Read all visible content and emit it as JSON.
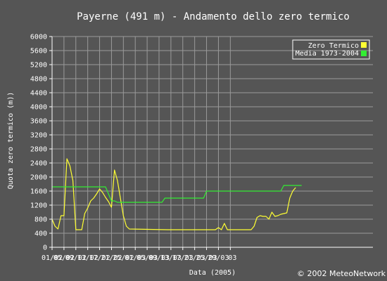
{
  "chart_data": {
    "type": "line",
    "title": "Payerne (491 m) - Andamento dello zero termico",
    "xlabel": "Data (2005)",
    "ylabel": "Quota zero termico (m))",
    "credit": "© 2002 MeteoNetwork",
    "ylim": [
      0,
      6000
    ],
    "y_ticks": [
      "0",
      "400",
      "800",
      "1200",
      "1600",
      "2000",
      "2400",
      "2800",
      "3200",
      "3600",
      "4000",
      "4400",
      "4800",
      "5200",
      "5600",
      "6000"
    ],
    "x_day_range": [
      1,
      109
    ],
    "x_ticks": [
      {
        "label": "01/02",
        "day": 1
      },
      {
        "label": "05/02",
        "day": 5
      },
      {
        "label": "09/02",
        "day": 9
      },
      {
        "label": "13/02",
        "day": 13
      },
      {
        "label": "17/02",
        "day": 17
      },
      {
        "label": "21/02",
        "day": 21
      },
      {
        "label": "25/02",
        "day": 25
      },
      {
        "label": "01/03",
        "day": 29
      },
      {
        "label": "05/03",
        "day": 33
      },
      {
        "label": "09/03",
        "day": 37
      },
      {
        "label": "13/03",
        "day": 41
      },
      {
        "label": "17/03",
        "day": 45
      },
      {
        "label": "21/03",
        "day": 49
      },
      {
        "label": "25/03",
        "day": 53
      },
      {
        "label": "29/03",
        "day": 57
      },
      {
        "label": "03",
        "day": 61
      }
    ],
    "grid": true,
    "legend_position": "top-right",
    "colors": {
      "background": "#555555",
      "axis": "#ffffff",
      "grid": "#9a9a9a",
      "zero_termico": "#ffff33",
      "media": "#33ee33"
    },
    "series": [
      {
        "name": "Zero Termico",
        "points": [
          [
            1,
            800
          ],
          [
            2,
            600
          ],
          [
            3,
            520
          ],
          [
            4,
            900
          ],
          [
            5,
            900
          ],
          [
            6,
            2520
          ],
          [
            7,
            2320
          ],
          [
            8,
            1900
          ],
          [
            9,
            500
          ],
          [
            10,
            500
          ],
          [
            11,
            500
          ],
          [
            12,
            960
          ],
          [
            13,
            1120
          ],
          [
            14,
            1320
          ],
          [
            15,
            1400
          ],
          [
            16,
            1520
          ],
          [
            17,
            1660
          ],
          [
            18,
            1560
          ],
          [
            19,
            1420
          ],
          [
            20,
            1300
          ],
          [
            21,
            1140
          ],
          [
            22,
            2200
          ],
          [
            23,
            1900
          ],
          [
            24,
            1400
          ],
          [
            25,
            900
          ],
          [
            26,
            600
          ],
          [
            27,
            520
          ],
          [
            40,
            500
          ],
          [
            53,
            500
          ],
          [
            56,
            500
          ],
          [
            57,
            560
          ],
          [
            58,
            500
          ],
          [
            59,
            680
          ],
          [
            60,
            500
          ],
          [
            62,
            500
          ],
          [
            68,
            500
          ],
          [
            69,
            600
          ],
          [
            70,
            850
          ],
          [
            71,
            900
          ],
          [
            72,
            880
          ],
          [
            73,
            880
          ],
          [
            74,
            800
          ],
          [
            75,
            1000
          ],
          [
            76,
            880
          ],
          [
            77,
            900
          ],
          [
            78,
            940
          ],
          [
            79,
            960
          ],
          [
            80,
            980
          ],
          [
            81,
            1400
          ],
          [
            82,
            1600
          ],
          [
            83,
            1700
          ]
        ]
      },
      {
        "name": "Media 1973-2004",
        "points": [
          [
            1,
            1720
          ],
          [
            19,
            1720
          ],
          [
            20,
            1520
          ],
          [
            21,
            1320
          ],
          [
            22,
            1320
          ],
          [
            23,
            1280
          ],
          [
            38,
            1280
          ],
          [
            39,
            1400
          ],
          [
            52,
            1400
          ],
          [
            53,
            1600
          ],
          [
            78,
            1600
          ],
          [
            79,
            1760
          ],
          [
            85,
            1760
          ]
        ]
      }
    ]
  }
}
